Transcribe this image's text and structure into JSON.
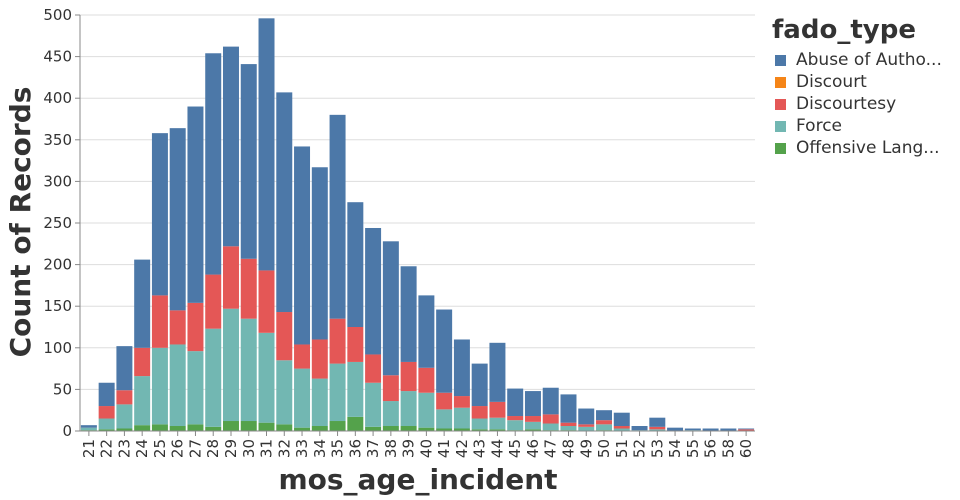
{
  "chart_data": {
    "type": "bar",
    "stacked": true,
    "xlabel": "mos_age_incident",
    "ylabel": "Count of Records",
    "ylim": [
      0,
      500
    ],
    "yticks": [
      0,
      50,
      100,
      150,
      200,
      250,
      300,
      350,
      400,
      450,
      500
    ],
    "grid": true,
    "legend_title": "fado_type",
    "legend_position": "right",
    "categories": [
      "21",
      "22",
      "23",
      "24",
      "25",
      "26",
      "27",
      "28",
      "29",
      "30",
      "31",
      "32",
      "33",
      "34",
      "35",
      "36",
      "37",
      "38",
      "39",
      "40",
      "41",
      "42",
      "43",
      "44",
      "45",
      "46",
      "47",
      "48",
      "49",
      "50",
      "51",
      "52",
      "53",
      "54",
      "55",
      "56",
      "58",
      "60"
    ],
    "series": [
      {
        "name": "Offensive Lang...",
        "color": "#54a24b",
        "values": [
          1,
          2,
          3,
          7,
          8,
          6,
          8,
          5,
          12,
          12,
          10,
          8,
          4,
          6,
          12,
          17,
          5,
          6,
          6,
          4,
          3,
          3,
          2,
          2,
          1,
          2,
          1,
          1,
          0,
          1,
          0,
          0,
          0,
          0,
          0,
          0,
          0,
          0
        ]
      },
      {
        "name": "Force",
        "color": "#72b7b2",
        "values": [
          3,
          13,
          29,
          59,
          92,
          98,
          88,
          118,
          135,
          123,
          108,
          77,
          71,
          57,
          69,
          66,
          53,
          30,
          42,
          42,
          23,
          25,
          13,
          14,
          12,
          9,
          8,
          5,
          5,
          7,
          3,
          1,
          2,
          0,
          1,
          0,
          0,
          0
        ]
      },
      {
        "name": "Discourtesy",
        "color": "#e45756",
        "values": [
          0,
          15,
          17,
          34,
          63,
          41,
          58,
          65,
          75,
          72,
          75,
          58,
          29,
          47,
          54,
          42,
          34,
          31,
          35,
          30,
          20,
          14,
          15,
          19,
          5,
          7,
          11,
          4,
          3,
          5,
          3,
          0,
          3,
          0,
          0,
          0,
          0,
          2
        ]
      },
      {
        "name": "Discourt",
        "color": "#f58518",
        "values": [
          0,
          0,
          0,
          0,
          0,
          0,
          0,
          0,
          0,
          0,
          0,
          0,
          0,
          0,
          0,
          0,
          0,
          0,
          0,
          0,
          0,
          0,
          0,
          0,
          0,
          0,
          0,
          0,
          0,
          0,
          0,
          0,
          0,
          0,
          0,
          0,
          0,
          0
        ]
      },
      {
        "name": "Abuse of Autho...",
        "color": "#4c78a8",
        "values": [
          3,
          28,
          53,
          106,
          195,
          219,
          236,
          266,
          240,
          234,
          303,
          264,
          238,
          207,
          245,
          150,
          152,
          161,
          115,
          87,
          100,
          68,
          51,
          71,
          33,
          30,
          32,
          34,
          19,
          12,
          16,
          5,
          11,
          4,
          2,
          3,
          3,
          1
        ]
      }
    ]
  },
  "legend_order": [
    "Abuse of Autho...",
    "Discourt",
    "Discourtesy",
    "Force",
    "Offensive Lang..."
  ]
}
